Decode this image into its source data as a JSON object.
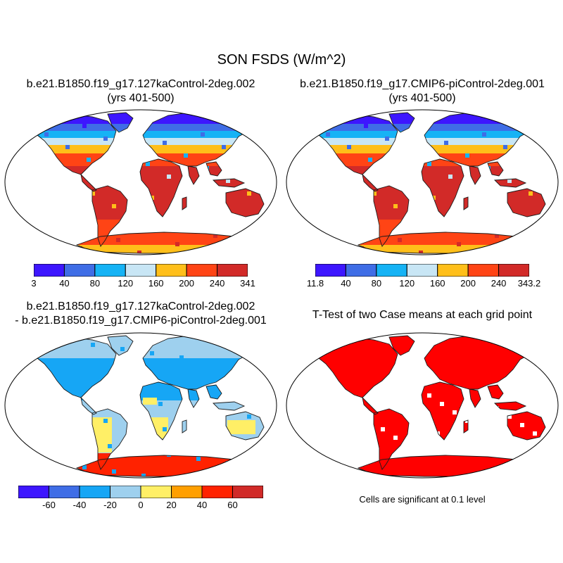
{
  "main_title": "SON FSDS (W/m^2)",
  "panels": {
    "top_left": {
      "title_line1": "b.e21.B1850.f19_g17.127kaControl-2deg.002",
      "title_line2": "(yrs 401-500)",
      "colorbar_labels": [
        "3",
        "40",
        "80",
        "120",
        "160",
        "200",
        "240",
        "341"
      ]
    },
    "top_right": {
      "title_line1": "b.e21.B1850.f19_g17.CMIP6-piControl-2deg.001",
      "title_line2": "(yrs 401-500)",
      "colorbar_labels": [
        "11.8",
        "40",
        "80",
        "120",
        "160",
        "200",
        "240",
        "343.2"
      ]
    },
    "bottom_left": {
      "title_line1": "b.e21.B1850.f19_g17.127kaControl-2deg.002",
      "title_line2": "- b.e21.B1850.f19_g17.CMIP6-piControl-2deg.001",
      "colorbar_labels": [
        "-60",
        "-40",
        "-20",
        "0",
        "20",
        "40",
        "60"
      ]
    },
    "bottom_right": {
      "title": "T-Test of two Case means at each grid point",
      "note": "Cells are significant at 0.1 level"
    }
  },
  "colors": {
    "abs_scale": [
      "#3d16ff",
      "#3f6de6",
      "#16b3f5",
      "#c8e6f5",
      "#ffbf1a",
      "#ff4415",
      "#d22a28"
    ],
    "diff_scale": [
      "#3d16ff",
      "#3f6de6",
      "#16a6f5",
      "#9ed0ee",
      "#ffef66",
      "#ff9f00",
      "#ff2200",
      "#d12a28"
    ],
    "significance": "#ff0000",
    "coastline": "#1a1a1a",
    "land_white": "#ffffff"
  }
}
